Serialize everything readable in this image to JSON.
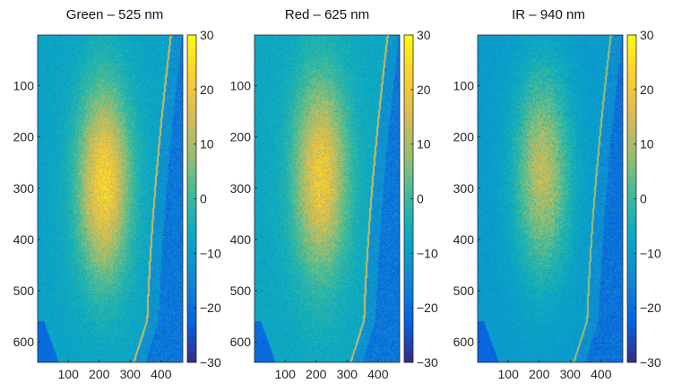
{
  "chart_data": [
    {
      "type": "heatmap",
      "title": "Green  – 525 nm",
      "xlabel": "",
      "ylabel": "",
      "xlim": [
        1,
        470
      ],
      "ylim": [
        640,
        1
      ],
      "xticks": [
        100,
        200,
        300,
        400
      ],
      "yticks": [
        100,
        200,
        300,
        400,
        500,
        600
      ],
      "colorbar": {
        "range": [
          -30,
          30
        ],
        "ticks": [
          30,
          20,
          10,
          0,
          -10,
          -20,
          -30
        ],
        "labels": [
          "30",
          "20",
          "10",
          "0",
          "−10",
          "−20",
          "−30"
        ],
        "colormap": "parula"
      },
      "hotspot": {
        "center": [
          215,
          290
        ],
        "peak_value": 22,
        "background_value": -8,
        "outside_value": -18
      }
    },
    {
      "type": "heatmap",
      "title": "Red – 625 nm",
      "xlabel": "",
      "ylabel": "",
      "xlim": [
        1,
        470
      ],
      "ylim": [
        640,
        1
      ],
      "xticks": [
        100,
        200,
        300,
        400
      ],
      "yticks": [
        100,
        200,
        300,
        400,
        500,
        600
      ],
      "colorbar": {
        "range": [
          -30,
          30
        ],
        "ticks": [
          30,
          20,
          10,
          0,
          -10,
          -20,
          -30
        ],
        "labels": [
          "30",
          "20",
          "10",
          "0",
          "−10",
          "−20",
          "−30"
        ],
        "colormap": "parula"
      },
      "hotspot": {
        "center": [
          215,
          275
        ],
        "peak_value": 20,
        "background_value": -7,
        "outside_value": -18
      }
    },
    {
      "type": "heatmap",
      "title": "IR – 940 nm",
      "xlabel": "",
      "ylabel": "",
      "xlim": [
        1,
        470
      ],
      "ylim": [
        640,
        1
      ],
      "xticks": [
        100,
        200,
        300,
        400
      ],
      "yticks": [
        100,
        200,
        300,
        400,
        500,
        600
      ],
      "colorbar": {
        "range": [
          -30,
          30
        ],
        "ticks": [
          30,
          20,
          10,
          0,
          -10,
          -20,
          -30
        ],
        "labels": [
          "30",
          "20",
          "10",
          "0",
          "−10",
          "−20",
          "−30"
        ],
        "colormap": "parula"
      },
      "hotspot": {
        "center": [
          210,
          270
        ],
        "peak_value": 12,
        "background_value": -10,
        "outside_value": -19
      }
    }
  ]
}
